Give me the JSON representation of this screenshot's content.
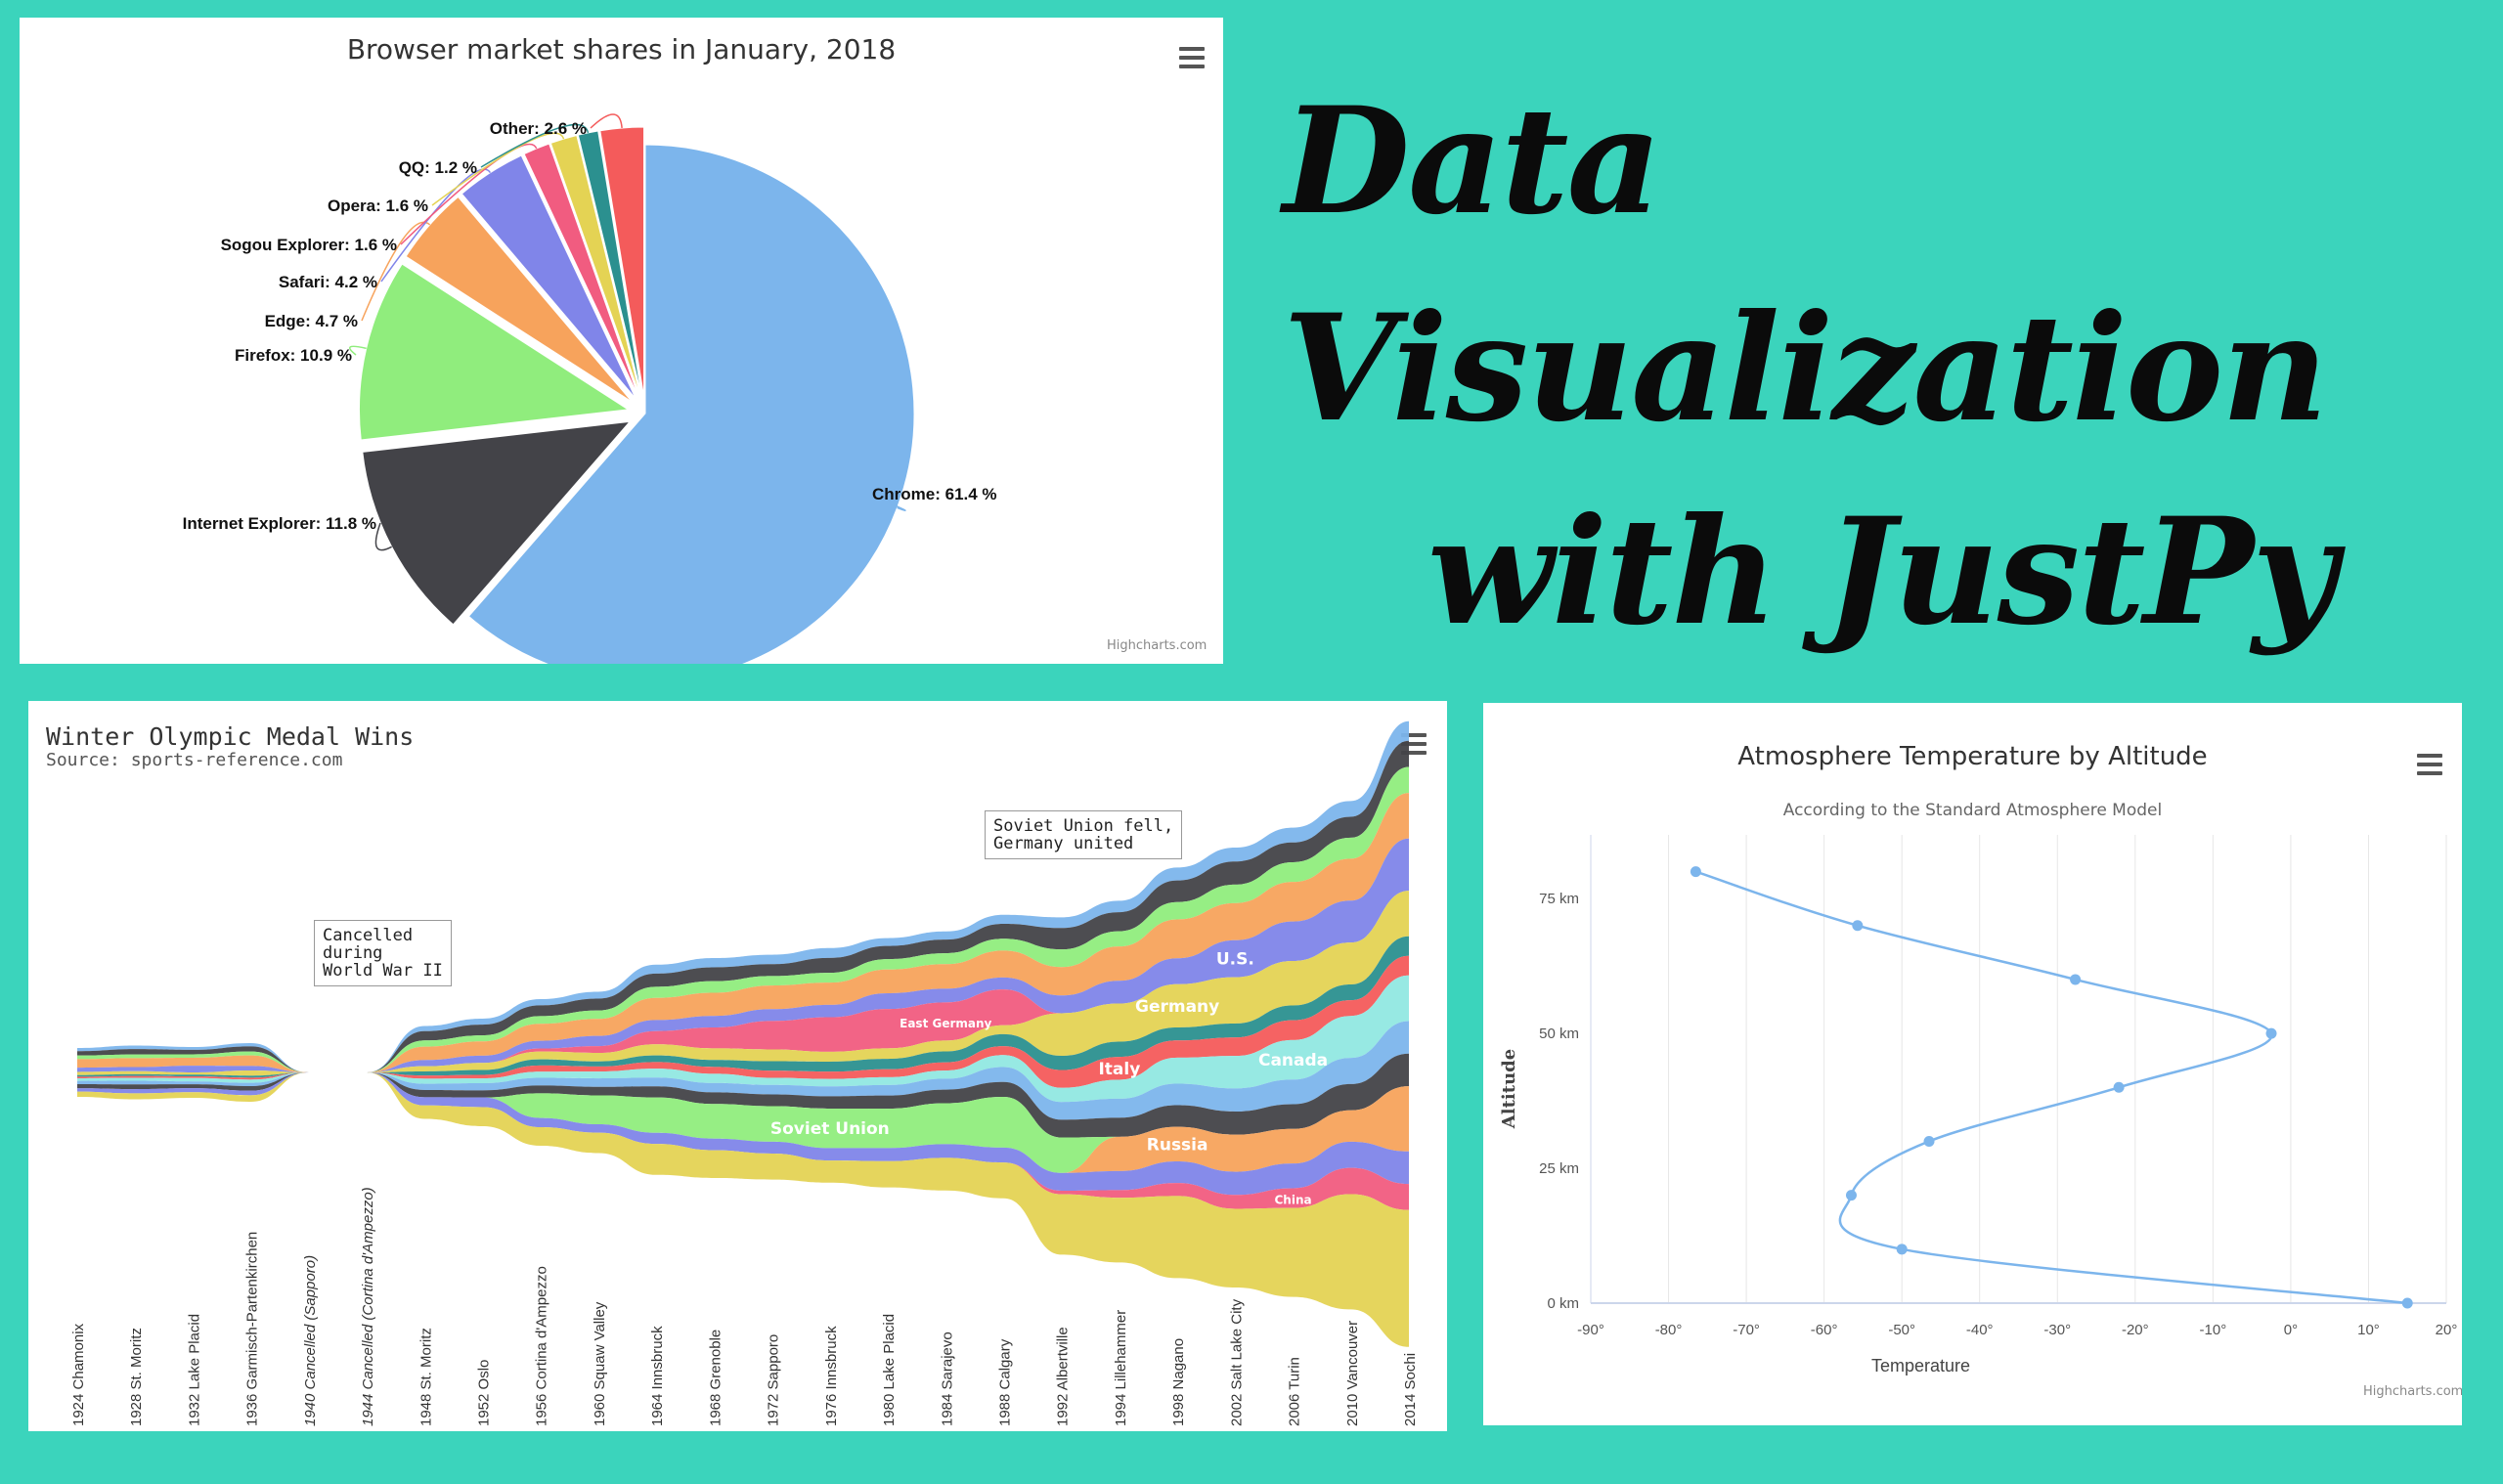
{
  "headline": {
    "line1": "Data",
    "line2": "Visualization",
    "line3": "with JustPy"
  },
  "credit": "Highcharts.com",
  "colors": {
    "background": "#3bd4bc",
    "palette": [
      "#7cb5ec",
      "#434348",
      "#90ed7d",
      "#f7a35c",
      "#8085e9",
      "#f15c80",
      "#e4d354",
      "#2b908f",
      "#f45b5b",
      "#91e8e1"
    ]
  },
  "chart_data": [
    {
      "type": "pie",
      "title": "Browser market shares in January, 2018",
      "unit": "%",
      "slices": [
        {
          "name": "Chrome",
          "value": 61.4,
          "label": "Chrome: 61.4 %",
          "sliced": false
        },
        {
          "name": "Internet Explorer",
          "value": 11.8,
          "label": "Internet Explorer: 11.8 %",
          "sliced": true
        },
        {
          "name": "Firefox",
          "value": 10.9,
          "label": "Firefox: 10.9 %",
          "sliced": true
        },
        {
          "name": "Edge",
          "value": 4.7,
          "label": "Edge: 4.7 %",
          "sliced": true
        },
        {
          "name": "Safari",
          "value": 4.2,
          "label": "Safari: 4.2 %",
          "sliced": true
        },
        {
          "name": "Sogou Explorer",
          "value": 1.6,
          "label": "Sogou Explorer: 1.6 %",
          "sliced": true
        },
        {
          "name": "Opera",
          "value": 1.6,
          "label": "Opera: 1.6 %",
          "sliced": true
        },
        {
          "name": "QQ",
          "value": 1.2,
          "label": "QQ: 1.2 %",
          "sliced": true
        },
        {
          "name": "Other",
          "value": 2.6,
          "label": "Other: 2.6 %",
          "sliced": true
        }
      ]
    },
    {
      "type": "streamgraph",
      "title": "Winter Olympic Medal Wins",
      "subtitle": "Source: sports-reference.com",
      "categories": [
        "1924 Chamonix",
        "1928 St. Moritz",
        "1932 Lake Placid",
        "1936 Garmisch-Partenkirchen",
        "1940 Cancelled (Sapporo)",
        "1944 Cancelled (Cortina d'Ampezzo)",
        "1948 St. Moritz",
        "1952 Oslo",
        "1956 Cortina d'Ampezzo",
        "1960 Squaw Valley",
        "1964 Innsbruck",
        "1968 Grenoble",
        "1972 Sapporo",
        "1976 Innsbruck",
        "1980 Lake Placid",
        "1984 Sarajevo",
        "1988 Calgary",
        "1992 Albertville",
        "1994 Lillehammer",
        "1998 Nagano",
        "2002 Salt Lake City",
        "2006 Turin",
        "2010 Vancouver",
        "2014 Sochi"
      ],
      "total_thickness": [
        50,
        55,
        52,
        60,
        0,
        0,
        95,
        110,
        150,
        165,
        215,
        225,
        230,
        240,
        255,
        265,
        290,
        345,
        370,
        420,
        450,
        480,
        520,
        640
      ],
      "series": [
        {
          "name": "",
          "share": [
            0.06,
            0.06,
            0.05,
            0.05,
            0,
            0,
            0.05,
            0.05,
            0.04,
            0.04,
            0.04,
            0.04,
            0.04,
            0.04,
            0.03,
            0.03,
            0.03,
            0.03,
            0.03,
            0.03,
            0.03,
            0.03,
            0.03,
            0.03
          ]
        },
        {
          "name": "",
          "share": [
            0.08,
            0.09,
            0.08,
            0.08,
            0,
            0,
            0.09,
            0.09,
            0.07,
            0.07,
            0.06,
            0.06,
            0.05,
            0.06,
            0.05,
            0.05,
            0.05,
            0.06,
            0.05,
            0.05,
            0.05,
            0.04,
            0.04,
            0.04
          ]
        },
        {
          "name": "",
          "share": [
            0.07,
            0.06,
            0.06,
            0.06,
            0,
            0,
            0.06,
            0.05,
            0.05,
            0.05,
            0.05,
            0.05,
            0.04,
            0.04,
            0.04,
            0.04,
            0.04,
            0.05,
            0.04,
            0.04,
            0.04,
            0.04,
            0.04,
            0.04
          ]
        },
        {
          "name": "",
          "share": [
            0.16,
            0.15,
            0.14,
            0.16,
            0,
            0,
            0.13,
            0.12,
            0.11,
            0.1,
            0.1,
            0.1,
            0.1,
            0.09,
            0.09,
            0.09,
            0.09,
            0.08,
            0.09,
            0.09,
            0.08,
            0.08,
            0.08,
            0.07
          ]
        },
        {
          "name": "U.S.",
          "share": [
            0.08,
            0.07,
            0.12,
            0.07,
            0,
            0,
            0.06,
            0.06,
            0.05,
            0.06,
            0.05,
            0.05,
            0.05,
            0.05,
            0.06,
            0.05,
            0.04,
            0.05,
            0.06,
            0.06,
            0.08,
            0.08,
            0.08,
            0.08
          ]
        },
        {
          "name": "East Germany",
          "share": [
            0.0,
            0.0,
            0.0,
            0.0,
            0,
            0,
            0.0,
            0.0,
            0.02,
            0.04,
            0.06,
            0.09,
            0.12,
            0.14,
            0.15,
            0.14,
            0.12,
            0.0,
            0.0,
            0.0,
            0.0,
            0.0,
            0.0,
            0.0
          ]
        },
        {
          "name": "Germany",
          "share": [
            0.06,
            0.05,
            0.04,
            0.08,
            0,
            0,
            0.05,
            0.06,
            0.05,
            0.05,
            0.05,
            0.05,
            0.05,
            0.04,
            0.04,
            0.04,
            0.03,
            0.12,
            0.1,
            0.1,
            0.1,
            0.09,
            0.08,
            0.07
          ]
        },
        {
          "name": "",
          "share": [
            0.03,
            0.03,
            0.03,
            0.03,
            0,
            0,
            0.04,
            0.04,
            0.04,
            0.03,
            0.03,
            0.03,
            0.04,
            0.04,
            0.04,
            0.04,
            0.04,
            0.04,
            0.04,
            0.03,
            0.03,
            0.03,
            0.03,
            0.03
          ]
        },
        {
          "name": "Italy",
          "share": [
            0.03,
            0.03,
            0.03,
            0.03,
            0,
            0,
            0.03,
            0.03,
            0.04,
            0.03,
            0.03,
            0.03,
            0.03,
            0.03,
            0.03,
            0.03,
            0.03,
            0.05,
            0.06,
            0.04,
            0.04,
            0.04,
            0.03,
            0.03
          ]
        },
        {
          "name": "Canada",
          "share": [
            0.05,
            0.05,
            0.06,
            0.05,
            0,
            0,
            0.05,
            0.04,
            0.04,
            0.04,
            0.04,
            0.04,
            0.03,
            0.03,
            0.03,
            0.03,
            0.04,
            0.04,
            0.05,
            0.06,
            0.07,
            0.08,
            0.08,
            0.07
          ]
        },
        {
          "name": "",
          "share": [
            0.06,
            0.06,
            0.05,
            0.05,
            0,
            0,
            0.06,
            0.06,
            0.05,
            0.05,
            0.04,
            0.04,
            0.04,
            0.04,
            0.04,
            0.04,
            0.05,
            0.05,
            0.05,
            0.05,
            0.05,
            0.05,
            0.05,
            0.05
          ]
        },
        {
          "name": "",
          "share": [
            0.08,
            0.08,
            0.07,
            0.07,
            0,
            0,
            0.07,
            0.06,
            0.05,
            0.05,
            0.05,
            0.05,
            0.05,
            0.05,
            0.05,
            0.05,
            0.05,
            0.05,
            0.05,
            0.05,
            0.05,
            0.05,
            0.05,
            0.05
          ]
        },
        {
          "name": "Soviet Union",
          "share": [
            0.0,
            0.0,
            0.0,
            0.0,
            0,
            0,
            0.0,
            0.0,
            0.16,
            0.17,
            0.16,
            0.15,
            0.15,
            0.16,
            0.15,
            0.15,
            0.17,
            0.1,
            0.0,
            0.0,
            0.0,
            0.0,
            0.0,
            0.0
          ]
        },
        {
          "name": "Russia",
          "share": [
            0.0,
            0.0,
            0.0,
            0.0,
            0,
            0,
            0.0,
            0.0,
            0.0,
            0.0,
            0.0,
            0.0,
            0.0,
            0.0,
            0.0,
            0.0,
            0.0,
            0.0,
            0.09,
            0.08,
            0.08,
            0.07,
            0.06,
            0.1
          ]
        },
        {
          "name": "",
          "share": [
            0.06,
            0.07,
            0.07,
            0.07,
            0,
            0,
            0.08,
            0.08,
            0.06,
            0.05,
            0.05,
            0.05,
            0.05,
            0.05,
            0.05,
            0.05,
            0.05,
            0.05,
            0.05,
            0.05,
            0.05,
            0.05,
            0.05,
            0.05
          ]
        },
        {
          "name": "China",
          "share": [
            0.0,
            0.0,
            0.0,
            0.0,
            0,
            0,
            0.0,
            0.0,
            0.0,
            0.0,
            0.0,
            0.0,
            0.0,
            0.0,
            0.0,
            0.0,
            0.0,
            0.01,
            0.02,
            0.03,
            0.03,
            0.04,
            0.05,
            0.04
          ]
        },
        {
          "name": "",
          "share": [
            0.1,
            0.1,
            0.1,
            0.1,
            0,
            0,
            0.13,
            0.16,
            0.12,
            0.12,
            0.14,
            0.12,
            0.11,
            0.09,
            0.1,
            0.12,
            0.12,
            0.17,
            0.17,
            0.19,
            0.17,
            0.18,
            0.22,
            0.21
          ]
        }
      ],
      "annotations": [
        {
          "text": "Cancelled\nduring\nWorld War II",
          "category": "1940 Cancelled (Sapporo)"
        },
        {
          "text": "Soviet Union fell,\nGermany united",
          "category": "1992 Albertville"
        }
      ]
    },
    {
      "type": "line",
      "title": "Atmosphere Temperature by Altitude",
      "subtitle": "According to the Standard Atmosphere Model",
      "xlabel": "Temperature",
      "ylabel": "Altitude",
      "xlim": [
        -90,
        20
      ],
      "ylim": [
        0,
        85
      ],
      "xticks": [
        "-90°",
        "-80°",
        "-70°",
        "-60°",
        "-50°",
        "-40°",
        "-30°",
        "-20°",
        "-10°",
        "0°",
        "10°",
        "20°"
      ],
      "yticks": [
        "0 km",
        "25 km",
        "50 km",
        "75 km"
      ],
      "points": [
        [
          15,
          0
        ],
        [
          -50,
          10
        ],
        [
          -56.5,
          20
        ],
        [
          -46.5,
          30
        ],
        [
          -22.1,
          40
        ],
        [
          -2.5,
          50
        ],
        [
          -27.7,
          60
        ],
        [
          -55.7,
          70
        ],
        [
          -76.5,
          80
        ]
      ]
    }
  ]
}
